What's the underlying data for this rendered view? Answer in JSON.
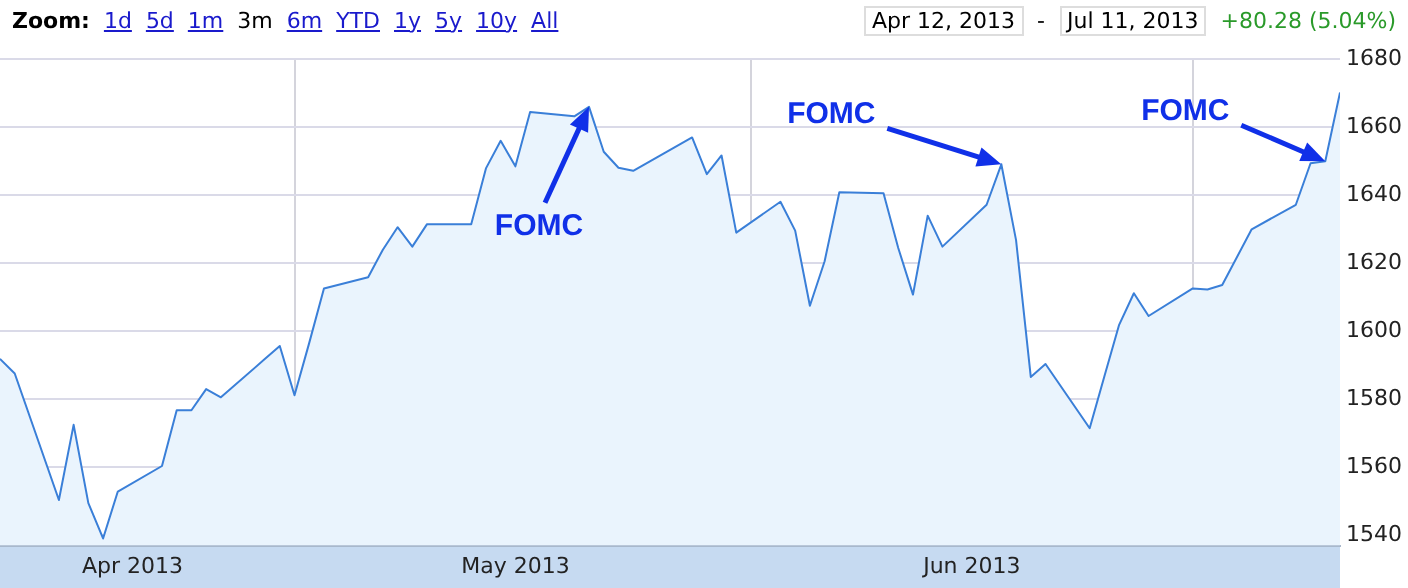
{
  "chart_data": {
    "type": "area",
    "x": [
      "2013-04-11",
      "2013-04-12",
      "2013-04-15",
      "2013-04-16",
      "2013-04-17",
      "2013-04-18",
      "2013-04-19",
      "2013-04-22",
      "2013-04-23",
      "2013-04-24",
      "2013-04-25",
      "2013-04-26",
      "2013-04-29",
      "2013-04-30",
      "2013-05-01",
      "2013-05-02",
      "2013-05-03",
      "2013-05-06",
      "2013-05-07",
      "2013-05-08",
      "2013-05-09",
      "2013-05-10",
      "2013-05-13",
      "2013-05-14",
      "2013-05-15",
      "2013-05-16",
      "2013-05-17",
      "2013-05-20",
      "2013-05-21",
      "2013-05-22",
      "2013-05-23",
      "2013-05-24",
      "2013-05-28",
      "2013-05-29",
      "2013-05-30",
      "2013-05-31",
      "2013-06-03",
      "2013-06-04",
      "2013-06-05",
      "2013-06-06",
      "2013-06-07",
      "2013-06-10",
      "2013-06-11",
      "2013-06-12",
      "2013-06-13",
      "2013-06-14",
      "2013-06-17",
      "2013-06-18",
      "2013-06-19",
      "2013-06-20",
      "2013-06-21",
      "2013-06-24",
      "2013-06-25",
      "2013-06-26",
      "2013-06-27",
      "2013-06-28",
      "2013-07-01",
      "2013-07-02",
      "2013-07-03",
      "2013-07-05",
      "2013-07-08",
      "2013-07-09",
      "2013-07-10",
      "2013-07-11"
    ],
    "series": [
      {
        "color": "#3a7fd8",
        "values": [
          1591.9,
          1587.6,
          1550.4,
          1572.5,
          1549.5,
          1539.1,
          1552.9,
          1560.4,
          1576.8,
          1576.8,
          1583.0,
          1580.6,
          1591.9,
          1595.7,
          1581.2,
          1596.6,
          1612.6,
          1615.9,
          1624.0,
          1630.6,
          1624.9,
          1631.5,
          1631.5,
          1647.9,
          1656.0,
          1648.5,
          1664.5,
          1663.2,
          1666.0,
          1652.8,
          1648.1,
          1647.2,
          1657.0,
          1646.2,
          1651.7,
          1629.0,
          1638.1,
          1629.6,
          1607.5,
          1620.6,
          1640.9,
          1640.6,
          1624.5,
          1610.8,
          1634.0,
          1624.9,
          1637.2,
          1649.1,
          1626.8,
          1586.6,
          1590.4,
          1571.5,
          1586.8,
          1601.9,
          1611.2,
          1604.5,
          1612.6,
          1612.3,
          1613.6,
          1630.0,
          1637.2,
          1649.4,
          1650.0,
          1670.2
        ]
      }
    ],
    "xlim": [
      "2013-04-11",
      "2013-07-11"
    ],
    "xticks": [
      {
        "value": "2013-04-20",
        "label": "Apr 2013"
      },
      {
        "value": "2013-05-01",
        "label": null
      },
      {
        "value": "2013-05-16",
        "label": "May 2013"
      },
      {
        "value": "2013-06-01",
        "label": null
      },
      {
        "value": "2013-06-16",
        "label": "Jun 2013"
      },
      {
        "value": "2013-07-01",
        "label": null
      }
    ],
    "ylim": [
      1537,
      1680
    ],
    "yticks": [
      1540,
      1560,
      1580,
      1600,
      1620,
      1640,
      1660,
      1680
    ],
    "grid": true,
    "legend": false,
    "marker": "none",
    "annotations": [
      "Zoom:",
      "1d",
      "5d",
      "1m",
      "3m",
      "6m",
      "YTD",
      "1y",
      "5y",
      "10y",
      "All",
      "Apr 12, 2013",
      "-",
      "Jul 11, 2013",
      "+80.28 (5.04%)",
      {
        "text": "FOMC",
        "x": "2013-05-21",
        "y": 1666.0
      },
      {
        "text": "FOMC",
        "x": "2013-06-18",
        "y": 1649.1
      },
      {
        "text": "FOMC",
        "x": "2013-07-10",
        "y": 1650.0
      }
    ]
  }
}
